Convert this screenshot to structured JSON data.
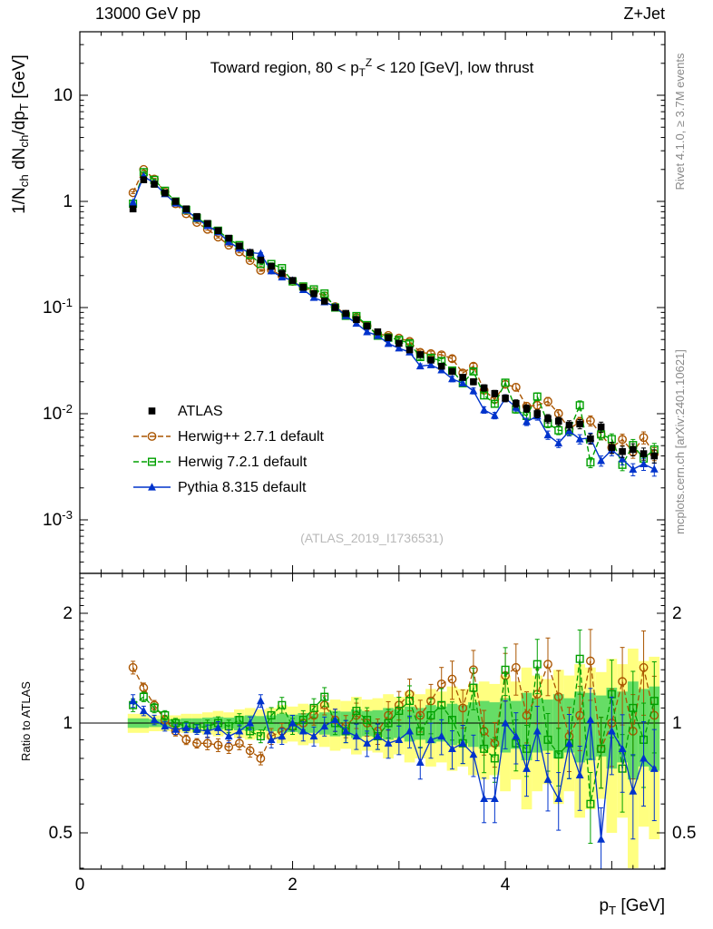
{
  "header": {
    "left": "13000 GeV pp",
    "right": "Z+Jet"
  },
  "side_notes": {
    "top_right": "Rivet 4.1.0, ≥ 3.7M events",
    "bottom_right": "mcplots.cern.ch [arXiv:2401.10621]"
  },
  "watermark": "(ATLAS_2019_I1736531)",
  "chart_data": {
    "type": "line",
    "title": "Toward region, 80 < p_{T}^{Z} < 120 [GeV], low thrust",
    "xlabel": "p_{T} [GeV]",
    "ylabel": "1/N_{ch} dN_{ch}/dp_{T} [GeV]",
    "ratio_ylabel": "Ratio to ATLAS",
    "xlim": [
      0,
      5.5
    ],
    "ylog_range": [
      0.0003,
      40
    ],
    "ratio_log_range": [
      0.4,
      2.57
    ],
    "legend_position": "left-middle",
    "grid": false,
    "yticks": [
      {
        "label": "10",
        "value": 10
      },
      {
        "label": "1",
        "value": 1
      },
      {
        "label": "10^{-1}",
        "value": 0.1
      },
      {
        "label": "10^{-2}",
        "value": 0.01
      },
      {
        "label": "10^{-3}",
        "value": 0.001
      }
    ],
    "xticks": [
      {
        "label": "0",
        "value": 0
      },
      {
        "label": "2",
        "value": 2
      },
      {
        "label": "4",
        "value": 4
      }
    ],
    "ratio_yticks": [
      {
        "label": "2",
        "value": 2
      },
      {
        "label": "1",
        "value": 1
      },
      {
        "label": "0.5",
        "value": 0.5
      }
    ],
    "x": [
      0.5,
      0.6,
      0.7,
      0.8,
      0.9,
      1.0,
      1.1,
      1.2,
      1.3,
      1.4,
      1.5,
      1.6,
      1.7,
      1.8,
      1.9,
      2.0,
      2.1,
      2.2,
      2.3,
      2.4,
      2.5,
      2.6,
      2.7,
      2.8,
      2.9,
      3.0,
      3.1,
      3.2,
      3.3,
      3.4,
      3.5,
      3.6,
      3.7,
      3.8,
      3.9,
      4.0,
      4.1,
      4.2,
      4.3,
      4.4,
      4.5,
      4.6,
      4.7,
      4.8,
      4.9,
      5.0,
      5.1,
      5.2,
      5.3,
      5.4
    ],
    "atlas_values": [
      0.85,
      1.6,
      1.45,
      1.2,
      1.0,
      0.85,
      0.72,
      0.62,
      0.53,
      0.45,
      0.38,
      0.33,
      0.28,
      0.245,
      0.21,
      0.18,
      0.155,
      0.135,
      0.115,
      0.1,
      0.088,
      0.077,
      0.067,
      0.059,
      0.052,
      0.046,
      0.04,
      0.036,
      0.032,
      0.028,
      0.025,
      0.022,
      0.02,
      0.0175,
      0.0155,
      0.014,
      0.0125,
      0.0112,
      0.01,
      0.009,
      0.0085,
      0.0078,
      0.008,
      0.0058,
      0.0075,
      0.0048,
      0.0044,
      0.0046,
      0.0042,
      0.004
    ],
    "stat_err_rel": [
      0.02,
      0.015,
      0.015,
      0.015,
      0.015,
      0.015,
      0.015,
      0.02,
      0.02,
      0.02,
      0.02,
      0.02,
      0.02,
      0.025,
      0.025,
      0.025,
      0.03,
      0.03,
      0.03,
      0.035,
      0.035,
      0.04,
      0.04,
      0.04,
      0.045,
      0.045,
      0.05,
      0.05,
      0.055,
      0.055,
      0.06,
      0.06,
      0.065,
      0.07,
      0.07,
      0.075,
      0.08,
      0.08,
      0.085,
      0.09,
      0.09,
      0.1,
      0.1,
      0.11,
      0.11,
      0.12,
      0.12,
      0.13,
      0.13,
      0.14
    ],
    "series": [
      {
        "name": "ATLAS",
        "color": "#000000",
        "marker": "filled-square",
        "line": "none"
      },
      {
        "name": "Herwig++ 2.7.1 default",
        "color": "#aa5500",
        "marker": "open-circle",
        "line": "dashed",
        "ratio": [
          1.42,
          1.25,
          1.12,
          1.02,
          0.95,
          0.9,
          0.88,
          0.88,
          0.87,
          0.86,
          0.88,
          0.84,
          0.8,
          0.92,
          0.95,
          0.98,
          1.0,
          1.05,
          1.12,
          1.02,
          0.98,
          1.05,
          1.0,
          0.95,
          1.05,
          1.12,
          1.2,
          1.05,
          1.15,
          1.28,
          1.32,
          1.1,
          1.4,
          0.95,
          0.88,
          1.35,
          1.42,
          1.05,
          1.2,
          1.45,
          1.18,
          0.92,
          1.05,
          1.48,
          0.85,
          1.0,
          1.3,
          0.95,
          1.42,
          1.05
        ]
      },
      {
        "name": "Herwig 7.2.1 default",
        "color": "#00a000",
        "marker": "open-square",
        "line": "dashed",
        "ratio": [
          1.12,
          1.18,
          1.1,
          1.05,
          1.0,
          0.98,
          0.97,
          0.98,
          1.0,
          0.98,
          1.02,
          0.95,
          0.92,
          1.05,
          1.12,
          0.98,
          1.02,
          1.1,
          1.18,
          1.0,
          0.95,
          1.08,
          1.02,
          0.92,
          1.0,
          1.08,
          1.15,
          0.95,
          1.05,
          1.12,
          1.02,
          0.88,
          1.25,
          0.85,
          0.8,
          1.4,
          0.88,
          0.85,
          1.45,
          0.9,
          0.82,
          0.88,
          1.5,
          0.6,
          0.85,
          1.2,
          0.75,
          1.1,
          0.9,
          1.15
        ]
      },
      {
        "name": "Pythia 8.315 default",
        "color": "#0033cc",
        "marker": "filled-triangle",
        "line": "solid",
        "ratio": [
          1.15,
          1.08,
          1.02,
          0.98,
          0.96,
          0.97,
          0.96,
          0.95,
          0.97,
          0.92,
          0.95,
          1.0,
          1.15,
          0.9,
          0.92,
          1.0,
          0.95,
          0.92,
          0.98,
          1.02,
          0.95,
          0.92,
          0.88,
          0.92,
          0.88,
          0.9,
          0.95,
          0.78,
          0.9,
          0.92,
          0.85,
          0.88,
          0.82,
          0.62,
          0.62,
          1.0,
          0.92,
          0.75,
          0.95,
          0.7,
          0.62,
          0.88,
          0.72,
          1.02,
          0.48,
          0.95,
          0.85,
          0.65,
          0.8,
          0.75
        ]
      }
    ],
    "bands": {
      "yellow": {
        "color": "#ffff80",
        "half_width": [
          0.06,
          0.06,
          0.05,
          0.05,
          0.05,
          0.06,
          0.06,
          0.07,
          0.08,
          0.07,
          0.09,
          0.1,
          0.09,
          0.1,
          0.12,
          0.11,
          0.13,
          0.12,
          0.14,
          0.16,
          0.15,
          0.18,
          0.16,
          0.17,
          0.2,
          0.18,
          0.22,
          0.2,
          0.24,
          0.22,
          0.26,
          0.24,
          0.28,
          0.3,
          0.28,
          0.35,
          0.3,
          0.42,
          0.35,
          0.32,
          0.4,
          0.35,
          0.45,
          0.42,
          0.38,
          0.5,
          0.45,
          0.6,
          0.48,
          0.52
        ]
      },
      "green": {
        "color": "#66dd66",
        "half_width": [
          0.03,
          0.03,
          0.025,
          0.025,
          0.025,
          0.03,
          0.03,
          0.035,
          0.04,
          0.035,
          0.045,
          0.05,
          0.045,
          0.05,
          0.06,
          0.055,
          0.065,
          0.06,
          0.07,
          0.08,
          0.075,
          0.09,
          0.08,
          0.085,
          0.1,
          0.09,
          0.11,
          0.1,
          0.12,
          0.11,
          0.13,
          0.12,
          0.14,
          0.15,
          0.14,
          0.17,
          0.15,
          0.21,
          0.17,
          0.16,
          0.2,
          0.17,
          0.22,
          0.21,
          0.19,
          0.25,
          0.22,
          0.3,
          0.24,
          0.26
        ]
      }
    }
  }
}
